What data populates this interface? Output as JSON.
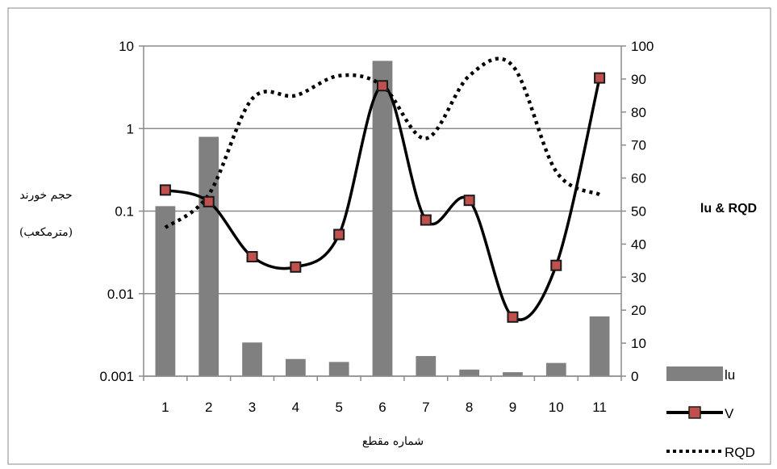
{
  "chart_data": {
    "type": "bar+line",
    "title": "",
    "categories": [
      "1",
      "2",
      "3",
      "4",
      "5",
      "6",
      "7",
      "8",
      "9",
      "10",
      "11"
    ],
    "xlabel": "شماره مقطع",
    "y_left": {
      "label_lines": [
        "حجم خورند",
        "(مترمکعب)"
      ],
      "scale": "log",
      "range": [
        0.001,
        10
      ],
      "ticks": [
        "10",
        "1",
        "0.1",
        "0.01",
        "0.001"
      ],
      "tick_values": [
        10,
        1,
        0.1,
        0.01,
        0.001
      ]
    },
    "y_right": {
      "label": "lu & RQD",
      "scale": "linear",
      "range": [
        0,
        100
      ],
      "ticks": [
        "100",
        "90",
        "80",
        "70",
        "60",
        "50",
        "40",
        "30",
        "20",
        "10",
        "0"
      ],
      "tick_values": [
        100,
        90,
        80,
        70,
        60,
        50,
        40,
        30,
        20,
        10,
        0
      ]
    },
    "grid": "horizontal major lines on left axis",
    "legend_position": "right",
    "series": [
      {
        "name": "lu",
        "type": "bar",
        "axis": "right",
        "color": "#808080",
        "values": [
          51.5,
          72.5,
          10.2,
          5.2,
          4.3,
          95.5,
          6.1,
          2.0,
          1.2,
          4.0,
          18.1
        ]
      },
      {
        "name": "V",
        "type": "line",
        "axis": "left",
        "color": "#000000",
        "marker": "square",
        "marker_fill": "#c0504d",
        "values": [
          0.18,
          0.13,
          0.028,
          0.021,
          0.052,
          3.3,
          0.078,
          0.135,
          0.0052,
          0.022,
          4.1
        ]
      },
      {
        "name": "RQD",
        "type": "line",
        "axis": "right",
        "color": "#000000",
        "dash": "dotted",
        "values": [
          45,
          55,
          84,
          85,
          91,
          88,
          72,
          91,
          94,
          62,
          55
        ]
      }
    ]
  }
}
